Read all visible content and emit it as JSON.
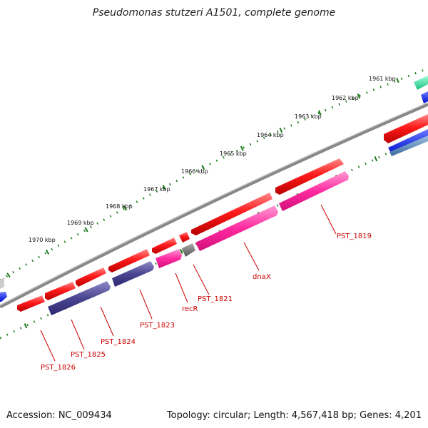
{
  "title": "Pseudomonas stutzeri A1501, complete genome",
  "accession": "Accession: NC_009434",
  "topology": "Topology: circular; Length: 4,567,418 bp; Genes: 4,201",
  "colors": {
    "backbone": "#888888",
    "forward_gene": "#ff1a1a",
    "reverse_gene_blue": "#4a4590",
    "reverse_gene_magenta": "#ff2aa0",
    "reverse_gene_gray": "#777777",
    "ticks": "#1e7a1e",
    "labels": "#cc0000",
    "teal": "#2fe0a0",
    "blue": "#0022ff"
  },
  "scale_labels": [
    "1961 kbp",
    "1962 kbp",
    "1963 kbp",
    "1964 kbp",
    "1965 kbp",
    "1966 kbp",
    "1967 kbp",
    "1968 kbp",
    "1969 kbp",
    "1970 kbp"
  ],
  "gene_labels": [
    "PST_1819",
    "dnaX",
    "PST_1821",
    "recR",
    "PST_1823",
    "PST_1824",
    "PST_1825",
    "PST_1826"
  ]
}
